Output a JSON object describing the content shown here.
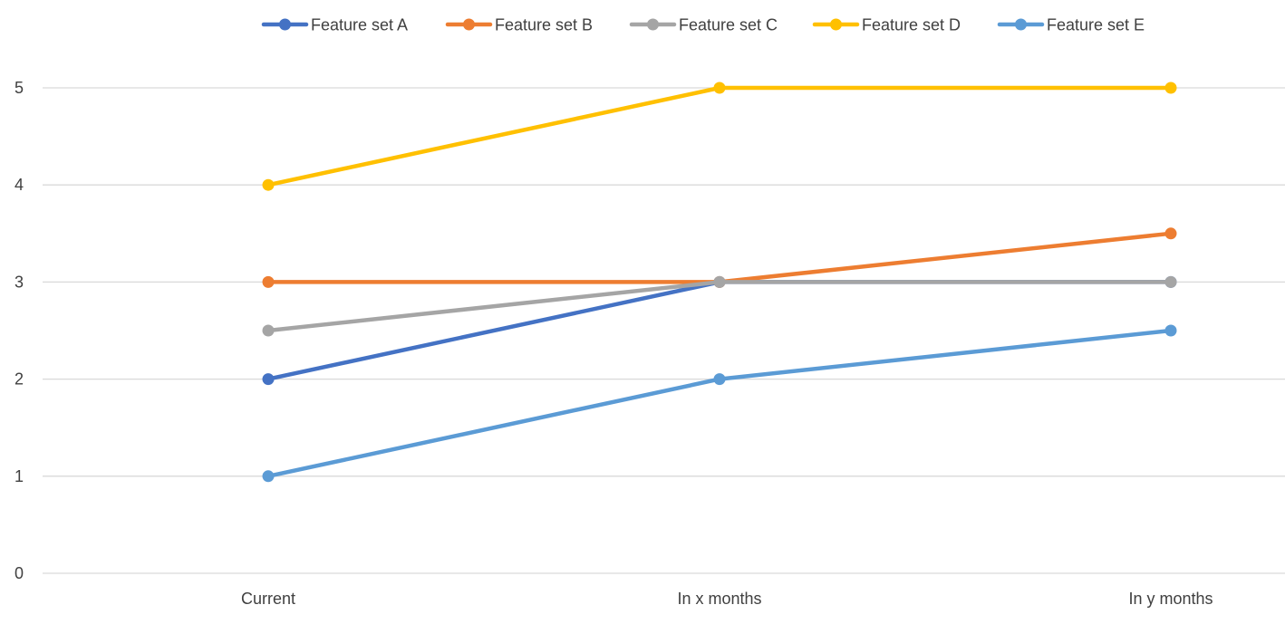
{
  "chart_data": {
    "type": "line",
    "title": "",
    "xlabel": "",
    "ylabel": "",
    "categories": [
      "Current",
      "In x months",
      "In y months"
    ],
    "ylim": [
      0,
      5
    ],
    "yticks": [
      0,
      1,
      2,
      3,
      4,
      5
    ],
    "grid": "horizontal",
    "legend_position": "top",
    "series": [
      {
        "name": "Feature set A",
        "color": "#4472C4",
        "values": [
          2,
          3,
          3
        ]
      },
      {
        "name": "Feature set B",
        "color": "#ED7D31",
        "values": [
          3,
          3,
          3.5
        ]
      },
      {
        "name": "Feature set C",
        "color": "#A5A5A5",
        "values": [
          2.5,
          3,
          3
        ]
      },
      {
        "name": "Feature set D",
        "color": "#FFC000",
        "values": [
          4,
          5,
          5
        ]
      },
      {
        "name": "Feature set E",
        "color": "#5B9BD5",
        "values": [
          1,
          2,
          2.5
        ]
      }
    ]
  }
}
